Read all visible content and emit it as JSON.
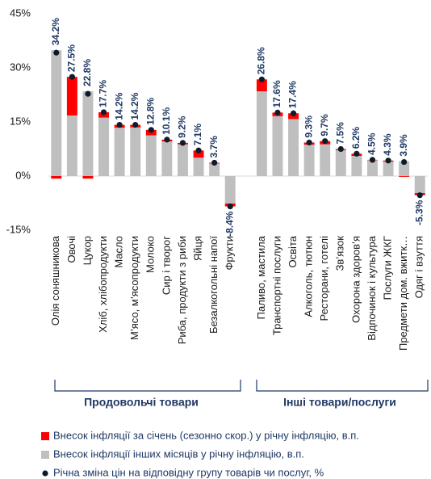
{
  "chart_data": {
    "type": "bar",
    "stacked": true,
    "categories": [
      "Олія соняшникова",
      "Овочі",
      "Цукор",
      "Хліб, хлібопродукти",
      "Масло",
      "М’ясо, м’ясопродукти",
      "Молоко",
      "Сир і творог",
      "Риба, продукти з риби",
      "Яйця",
      "Безалкогольні напої",
      "Фрукти",
      null,
      "Паливо, мастила",
      "Транспортні послуги",
      "Освіта",
      "Алкоголь, тютюн",
      "Ресторани, готелі",
      "Зв’язок",
      "Охорона здоров’я",
      "Відпочинок і культура",
      "Послуги ЖКГ",
      "Предмети дом. вжитк…",
      "Одяг і взуття"
    ],
    "series": [
      {
        "name": "Внесок інфляції інших місяців у річну інфляцію, в.п.",
        "color": "#bfbfbf",
        "type": "bar",
        "values": [
          34.9,
          16.8,
          23.5,
          16.2,
          13.4,
          13.5,
          11.3,
          9.6,
          8.8,
          5.1,
          3.5,
          -7.6,
          null,
          23.5,
          16.6,
          15.8,
          8.7,
          8.8,
          7.2,
          5.6,
          4.4,
          4.0,
          4.1,
          -4.7
        ]
      },
      {
        "name": "Внесок інфляції за січень (сезонно скор.) у річну інфляцію, в.п.",
        "color": "#ff0000",
        "type": "bar",
        "values": [
          -0.7,
          10.7,
          -0.7,
          1.5,
          0.8,
          0.7,
          1.5,
          0.5,
          0.4,
          2.0,
          0.2,
          -0.8,
          null,
          3.3,
          1.0,
          1.6,
          0.6,
          0.9,
          0.3,
          0.6,
          0.1,
          0.3,
          -0.2,
          -0.6
        ]
      },
      {
        "name": "Річна зміна цін на відповідну групу товарів чи послуг, %",
        "color": "#0d1b2a",
        "type": "dot",
        "values": [
          34.2,
          27.5,
          22.8,
          17.7,
          14.2,
          14.2,
          12.8,
          10.1,
          9.2,
          7.1,
          3.7,
          -8.4,
          null,
          26.8,
          17.6,
          17.4,
          9.3,
          9.7,
          7.5,
          6.2,
          4.5,
          4.3,
          3.9,
          -5.3
        ],
        "value_labels": [
          "34.2%",
          "27.5%",
          "22.8%",
          "17.7%",
          "14.2%",
          "14.2%",
          "12.8%",
          "10.1%",
          "9.2%",
          "7.1%",
          "3.7%",
          "-8.4%",
          null,
          "26.8%",
          "17.6%",
          "17.4%",
          "9.3%",
          "9.7%",
          "7.5%",
          "6.2%",
          "4.5%",
          "4.3%",
          "3.9%",
          "-5.3%"
        ]
      }
    ],
    "legend_order": [
      1,
      0,
      2
    ],
    "group_labels": [
      "Продовольчі товари",
      "Інші товари/послуги"
    ],
    "ylim": [
      -15,
      45
    ],
    "yticks": [
      {
        "value": -15,
        "label": "-15%"
      },
      {
        "value": 0,
        "label": "0%"
      },
      {
        "value": 15,
        "label": "15%"
      },
      {
        "value": 30,
        "label": "30%"
      },
      {
        "value": 45,
        "label": "45%"
      }
    ]
  }
}
